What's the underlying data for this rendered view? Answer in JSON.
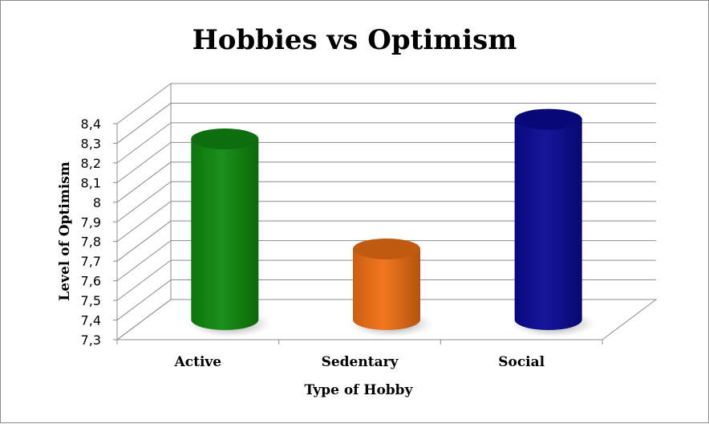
{
  "chart_data": {
    "type": "bar",
    "title": "Hobbies vs Optimism",
    "xlabel": "Type of Hobby",
    "ylabel": "Level of Optimism",
    "categories": [
      "Active",
      "Sedentary",
      "Social"
    ],
    "values": [
      8.22,
      7.66,
      8.32
    ],
    "ylim": [
      7.3,
      8.4
    ],
    "yticks": [
      "7,3",
      "7,4",
      "7,5",
      "7,6",
      "7,7",
      "7,8",
      "7,9",
      "8",
      "8,1",
      "8,2",
      "8,3",
      "8,4"
    ],
    "grid": true,
    "legend": "none",
    "colors": [
      "#0f8a0f",
      "#f07014",
      "#0a0a96"
    ]
  }
}
